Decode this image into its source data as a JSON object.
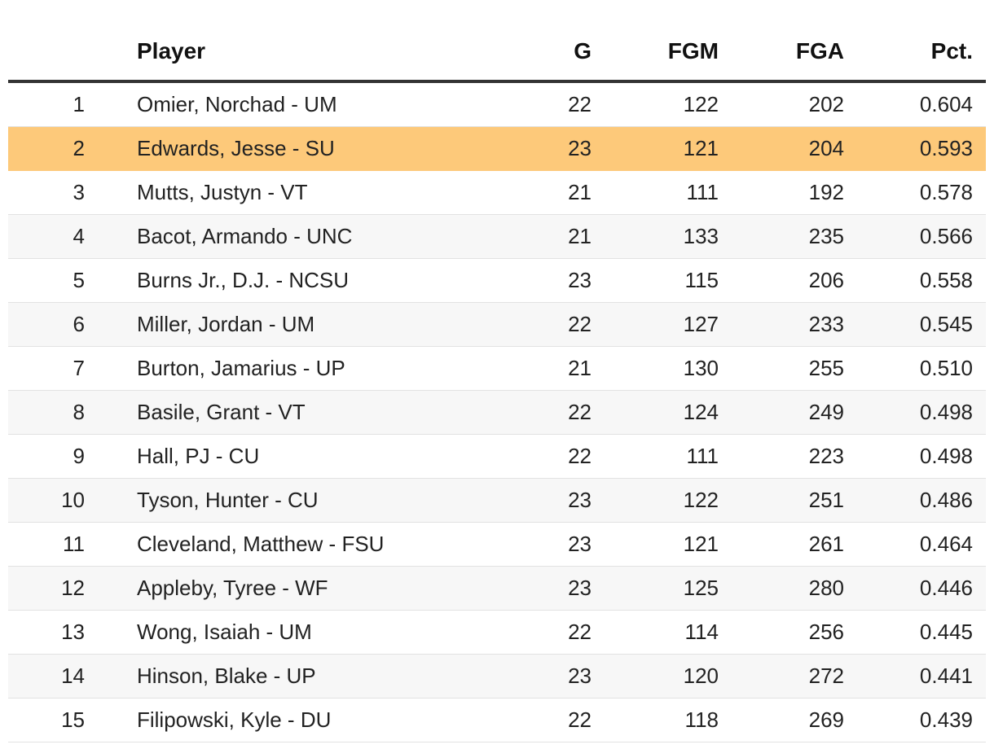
{
  "table": {
    "headers": {
      "rank": "",
      "player": "Player",
      "g": "G",
      "fgm": "FGM",
      "fga": "FGA",
      "pct": "Pct."
    },
    "highlight_color": "#fdc97a",
    "highlighted_rank": "2",
    "rows": [
      {
        "rank": "1",
        "player": "Omier, Norchad - UM",
        "g": "22",
        "fgm": "122",
        "fga": "202",
        "pct": "0.604"
      },
      {
        "rank": "2",
        "player": "Edwards, Jesse - SU",
        "g": "23",
        "fgm": "121",
        "fga": "204",
        "pct": "0.593"
      },
      {
        "rank": "3",
        "player": "Mutts, Justyn - VT",
        "g": "21",
        "fgm": "111",
        "fga": "192",
        "pct": "0.578"
      },
      {
        "rank": "4",
        "player": "Bacot, Armando - UNC",
        "g": "21",
        "fgm": "133",
        "fga": "235",
        "pct": "0.566"
      },
      {
        "rank": "5",
        "player": "Burns Jr., D.J. - NCSU",
        "g": "23",
        "fgm": "115",
        "fga": "206",
        "pct": "0.558"
      },
      {
        "rank": "6",
        "player": "Miller, Jordan - UM",
        "g": "22",
        "fgm": "127",
        "fga": "233",
        "pct": "0.545"
      },
      {
        "rank": "7",
        "player": "Burton, Jamarius - UP",
        "g": "21",
        "fgm": "130",
        "fga": "255",
        "pct": "0.510"
      },
      {
        "rank": "8",
        "player": "Basile, Grant - VT",
        "g": "22",
        "fgm": "124",
        "fga": "249",
        "pct": "0.498"
      },
      {
        "rank": "9",
        "player": "Hall, PJ - CU",
        "g": "22",
        "fgm": "111",
        "fga": "223",
        "pct": "0.498"
      },
      {
        "rank": "10",
        "player": "Tyson, Hunter - CU",
        "g": "23",
        "fgm": "122",
        "fga": "251",
        "pct": "0.486"
      },
      {
        "rank": "11",
        "player": "Cleveland, Matthew - FSU",
        "g": "23",
        "fgm": "121",
        "fga": "261",
        "pct": "0.464"
      },
      {
        "rank": "12",
        "player": "Appleby, Tyree - WF",
        "g": "23",
        "fgm": "125",
        "fga": "280",
        "pct": "0.446"
      },
      {
        "rank": "13",
        "player": "Wong, Isaiah - UM",
        "g": "22",
        "fgm": "114",
        "fga": "256",
        "pct": "0.445"
      },
      {
        "rank": "14",
        "player": "Hinson, Blake - UP",
        "g": "23",
        "fgm": "120",
        "fga": "272",
        "pct": "0.441"
      },
      {
        "rank": "15",
        "player": "Filipowski, Kyle - DU",
        "g": "22",
        "fgm": "118",
        "fga": "269",
        "pct": "0.439"
      }
    ]
  }
}
